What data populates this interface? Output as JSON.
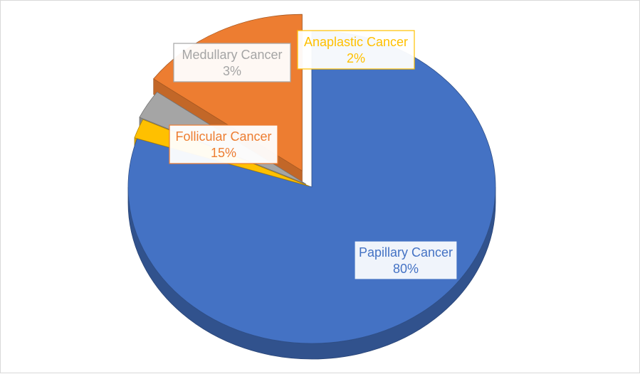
{
  "chart_data": {
    "type": "pie",
    "title": "",
    "style": "3d-exploded",
    "categories": [
      "Papillary Cancer",
      "Anaplastic Cancer",
      "Medullary Cancer",
      "Follicular Cancer"
    ],
    "values": [
      80,
      2,
      3,
      15
    ],
    "colors": [
      "#4472C4",
      "#FFC000",
      "#A5A5A5",
      "#ED7D31"
    ],
    "data_labels": [
      {
        "name": "Papillary Cancer",
        "value": "80%"
      },
      {
        "name": "Anaplastic Cancer",
        "value": "2%"
      },
      {
        "name": "Medullary Cancer",
        "value": "3%"
      },
      {
        "name": "Follicular Cancer",
        "value": "15%"
      }
    ],
    "legend": "none"
  }
}
